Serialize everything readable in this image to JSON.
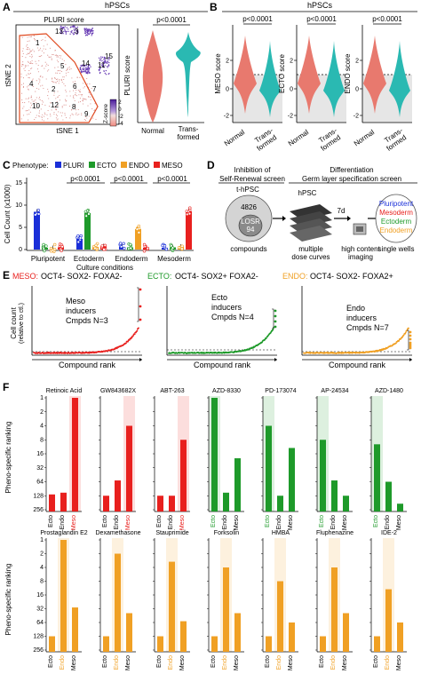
{
  "colors": {
    "red": "#e8201e",
    "green": "#1e9a2a",
    "orange": "#f0a024",
    "blue": "#1a2fd8",
    "violin_red": "#e8796e",
    "violin_teal": "#2ab9b2",
    "tsne_dot": "#d98a86",
    "tsne_purple": "#6a3fb5"
  },
  "panelA": {
    "letter": "A",
    "header": "hPSCs",
    "tsne_title": "PLURI score",
    "xlabel": "tSNE 1",
    "ylabel": "tSNE 2",
    "cluster_labels": [
      "13",
      "3",
      "1",
      "15",
      "11",
      "14",
      "4",
      "7",
      "10",
      "12",
      "8",
      "9",
      "5",
      "2",
      "6",
      "10"
    ],
    "colorbar_label": "Z-score",
    "colorbar_ticks": [
      "2",
      "0",
      "-2",
      "-4"
    ],
    "violin_p": "p<0.0001",
    "violin_ylabel": "PLURI score",
    "violin_x": [
      "Normal",
      "Trans-",
      "formed"
    ]
  },
  "panelB": {
    "letter": "B",
    "header": "hPSCs",
    "p": "p<0.0001",
    "ylabels": [
      "MESO score",
      "ECTO score",
      "ENDO score"
    ],
    "yticks": [
      "2",
      "0",
      "-2"
    ],
    "x": [
      "Normal",
      "Trans-",
      "formed"
    ]
  },
  "panelC": {
    "letter": "C",
    "legend_title": "Phenotype:",
    "legend": [
      "PLURI",
      "ECTO",
      "ENDO",
      "MESO"
    ],
    "ylabel": "Cell Count (x1000)",
    "yticks": [
      "15",
      "10",
      "5",
      "0"
    ],
    "pvalues": [
      "p<0.0001",
      "p<0.0001",
      "p<0.0001"
    ],
    "groups": [
      "Pluripotent",
      "Ectoderm",
      "Endoderm",
      "Mesoderm"
    ],
    "xlabel": "Culture conditions"
  },
  "panelD": {
    "letter": "D",
    "left_title": [
      "Inhibition of",
      "Self-Renewal screen"
    ],
    "right_title": [
      "Differentiation",
      "Germ layer specification screen"
    ],
    "thpsc": "t-hPSC",
    "count1": "4826",
    "count2": "LOSR",
    "count3": "94",
    "hpsc": "hPSC",
    "days": "7d",
    "compounds": "compounds",
    "dose": [
      "multiple",
      "dose curves"
    ],
    "imaging": [
      "high content",
      "imaging"
    ],
    "wells": "single wells",
    "circle_items": [
      "Pluripotent",
      "Mesoderm",
      "Ectoderm",
      "Endoderm"
    ]
  },
  "panelE": {
    "letter": "E",
    "titles": [
      {
        "prefix": "MESO:",
        "rest": "OCT4- SOX2- FOXA2-"
      },
      {
        "prefix": "ECTO:",
        "rest": "OCT4- SOX2+ FOXA2-"
      },
      {
        "prefix": "ENDO:",
        "rest": "OCT4- SOX2- FOXA2+"
      }
    ],
    "ylabel": [
      "Cell count",
      "(relative to ctl.)"
    ],
    "xlabel": "Compound rank",
    "annotations": [
      [
        "Meso",
        "inducers",
        "Cmpds N=3"
      ],
      [
        "Ecto",
        "inducers",
        "Cmpds N=4"
      ],
      [
        "Endo",
        "inducers",
        "Cmpds N=7"
      ]
    ]
  },
  "panelF": {
    "letter": "F",
    "ylabel": [
      "Pheno-specific ranking"
    ],
    "yticks": [
      "1",
      "2",
      "4",
      "8",
      "16",
      "32",
      "64",
      "128",
      "256"
    ],
    "categories": [
      "Ecto",
      "Endo",
      "Meso"
    ],
    "row1": [
      {
        "name": "Retinoic Acid",
        "layer": "Meso",
        "ranks": [
          120,
          110,
          1
        ]
      },
      {
        "name": "GW843682X",
        "layer": "Meso",
        "ranks": [
          128,
          60,
          4
        ]
      },
      {
        "name": "ABT-263",
        "layer": "Meso",
        "ranks": [
          128,
          128,
          8
        ]
      },
      {
        "name": "AZD-8330",
        "layer": "Ecto",
        "ranks": [
          1,
          110,
          20
        ]
      },
      {
        "name": "PD-173074",
        "layer": "Ecto",
        "ranks": [
          4,
          128,
          12
        ]
      },
      {
        "name": "AP-24534",
        "layer": "Ecto",
        "ranks": [
          8,
          60,
          128
        ]
      },
      {
        "name": "AZD-1480",
        "layer": "Ecto",
        "ranks": [
          10,
          64,
          190
        ]
      }
    ],
    "row2": [
      {
        "name": "Prostaglandin E2",
        "layer": "Endo",
        "ranks": [
          128,
          1,
          30
        ]
      },
      {
        "name": "Dexamethasone",
        "layer": "Endo",
        "ranks": [
          128,
          2,
          40
        ]
      },
      {
        "name": "Stauprimide",
        "layer": "Endo",
        "ranks": [
          128,
          3,
          60
        ]
      },
      {
        "name": "Forksolin",
        "layer": "Endo",
        "ranks": [
          128,
          4,
          40
        ]
      },
      {
        "name": "HMBA",
        "layer": "Endo",
        "ranks": [
          128,
          8,
          64
        ]
      },
      {
        "name": "Fluphenazine",
        "layer": "Endo",
        "ranks": [
          128,
          4,
          40
        ]
      },
      {
        "name": "IDE-2",
        "layer": "Endo",
        "ranks": [
          128,
          12,
          64
        ]
      }
    ]
  }
}
